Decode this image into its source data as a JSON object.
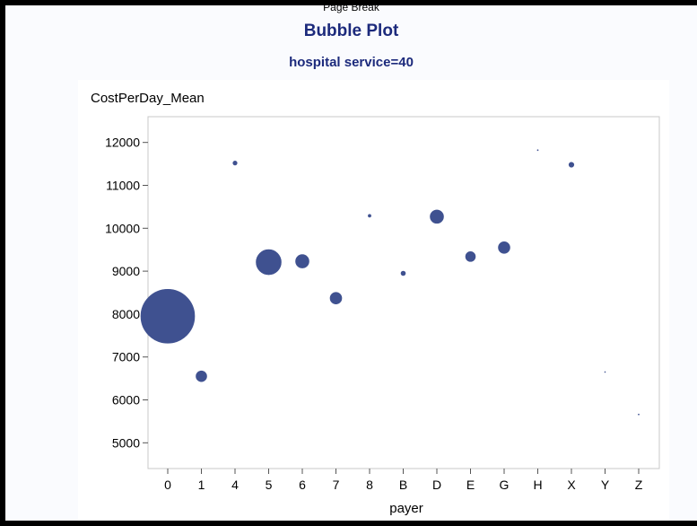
{
  "header": {
    "page_break": "Page Break",
    "title": "Bubble Plot",
    "subtitle": "hospital service=40"
  },
  "colors": {
    "bubble": "#3f5190",
    "title": "#1c2a7c",
    "frame": "#000000"
  },
  "chart_data": {
    "type": "scatter",
    "ylabel": "CostPerDay_Mean",
    "xlabel": "payer",
    "ylim": [
      4400,
      12600
    ],
    "yticks": [
      5000,
      6000,
      7000,
      8000,
      9000,
      10000,
      11000,
      12000
    ],
    "categories": [
      "0",
      "1",
      "4",
      "5",
      "6",
      "7",
      "8",
      "B",
      "D",
      "E",
      "G",
      "H",
      "X",
      "Y",
      "Z"
    ],
    "grid": false,
    "legend": "none",
    "points": [
      {
        "x": "0",
        "y": 7950,
        "size": 30
      },
      {
        "x": "1",
        "y": 6550,
        "size": 6
      },
      {
        "x": "4",
        "y": 11520,
        "size": 2.3
      },
      {
        "x": "5",
        "y": 9210,
        "size": 14
      },
      {
        "x": "6",
        "y": 9230,
        "size": 7.5
      },
      {
        "x": "7",
        "y": 8370,
        "size": 6.5
      },
      {
        "x": "8",
        "y": 10290,
        "size": 1.6
      },
      {
        "x": "B",
        "y": 8950,
        "size": 2.5
      },
      {
        "x": "D",
        "y": 10270,
        "size": 7.5
      },
      {
        "x": "E",
        "y": 9340,
        "size": 5.5
      },
      {
        "x": "G",
        "y": 9550,
        "size": 6.5
      },
      {
        "x": "H",
        "y": 11820,
        "size": 0.6
      },
      {
        "x": "X",
        "y": 11480,
        "size": 2.8
      },
      {
        "x": "Y",
        "y": 6650,
        "size": 0.5
      },
      {
        "x": "Z",
        "y": 5660,
        "size": 0.6
      }
    ]
  }
}
